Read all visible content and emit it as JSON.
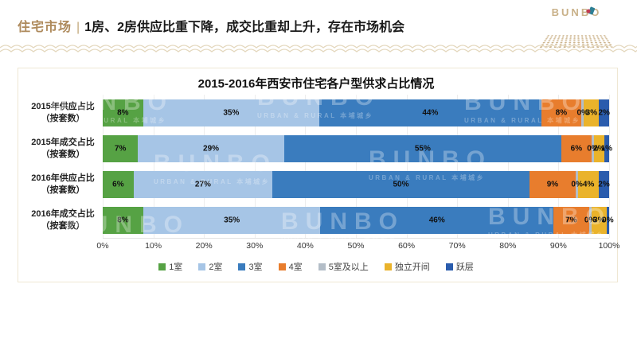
{
  "header": {
    "accent_title": "住宅市场",
    "separator": "|",
    "main_title": "1房、2房供应比重下降，成交比重却上升，存在市场机会",
    "accent_color": "#AE8A5C",
    "logo": {
      "text": "BUNBO",
      "color": "#C9B189"
    }
  },
  "watermark": {
    "brand": "BUNBO",
    "caption": "URBAN & RURAL 本埔城乡"
  },
  "chart_data": {
    "type": "bar",
    "orientation": "horizontal",
    "stacked": true,
    "title": "2015-2016年西安市住宅各户型供求占比情况",
    "value_unit": "%",
    "xlim": [
      0,
      100
    ],
    "grid": true,
    "legend_position": "bottom",
    "x_ticks": [
      "0%",
      "10%",
      "20%",
      "30%",
      "40%",
      "50%",
      "60%",
      "70%",
      "80%",
      "90%",
      "100%"
    ],
    "categories": [
      {
        "line1": "2015年供应占比",
        "line2": "（按套数）"
      },
      {
        "line1": "2015年成交占比",
        "line2": "（按套数）"
      },
      {
        "line1": "2016年供应占比",
        "line2": "（按套数）"
      },
      {
        "line1": "2016年成交占比",
        "line2": "（按套数）"
      }
    ],
    "series": [
      {
        "name": "1室",
        "color": "#56A244",
        "values": [
          8,
          7,
          6,
          8
        ]
      },
      {
        "name": "2室",
        "color": "#A6C5E6",
        "values": [
          35,
          29,
          27,
          35
        ]
      },
      {
        "name": "3室",
        "color": "#3A7CBE",
        "values": [
          44,
          55,
          50,
          46
        ]
      },
      {
        "name": "4室",
        "color": "#E87D2D",
        "values": [
          8,
          6,
          9,
          7
        ]
      },
      {
        "name": "5室及以上",
        "color": "#B3BDC7",
        "values": [
          0,
          0,
          0,
          0
        ]
      },
      {
        "name": "独立开间",
        "color": "#EAB32B",
        "values": [
          3,
          2,
          4,
          3
        ]
      },
      {
        "name": "跃层",
        "color": "#2A5CAD",
        "values": [
          2,
          1,
          2,
          0
        ]
      }
    ]
  }
}
